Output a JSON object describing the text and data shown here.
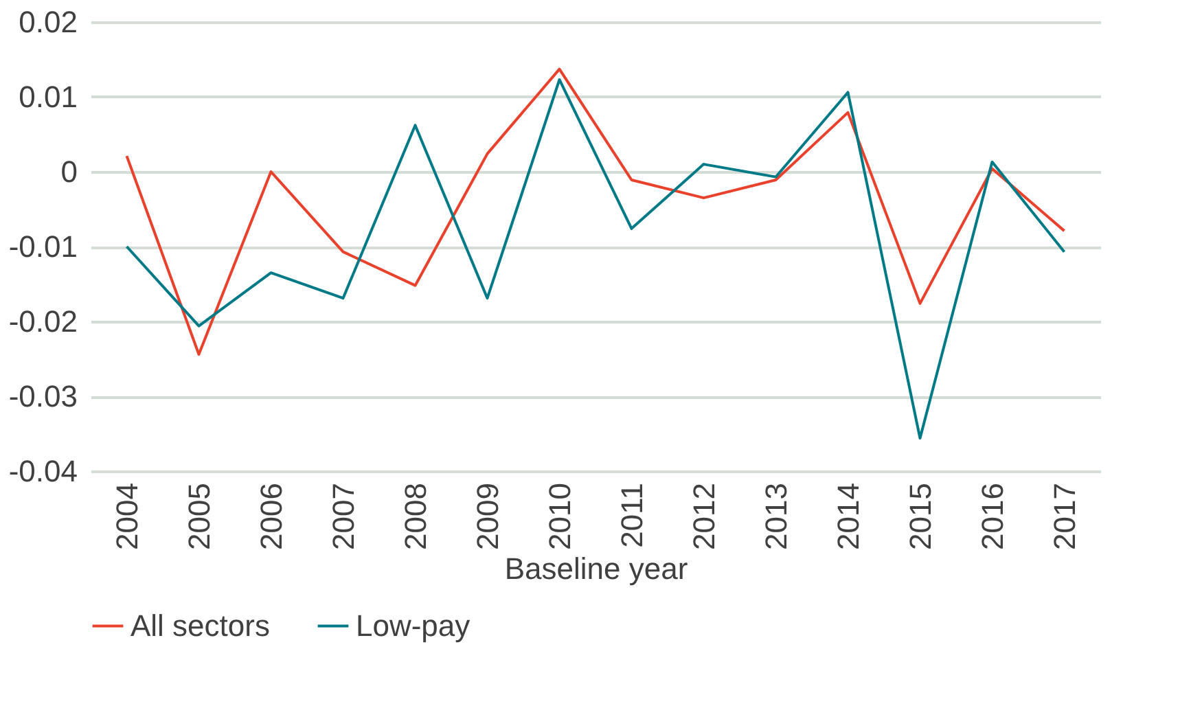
{
  "chart_data": {
    "type": "line",
    "xlabel": "Baseline year",
    "categories": [
      "2004",
      "2005",
      "2006",
      "2007",
      "2008",
      "2009",
      "2010",
      "2011",
      "2012",
      "2013",
      "2014",
      "2015",
      "2016",
      "2017"
    ],
    "series": [
      {
        "name": "All sectors",
        "color": "#e8412c",
        "values": [
          0.0021,
          -0.0244,
          0.0,
          -0.0107,
          -0.0152,
          0.0024,
          0.0137,
          -0.0011,
          -0.0035,
          -0.0011,
          0.0079,
          -0.0176,
          0.0004,
          -0.0079
        ]
      },
      {
        "name": "Low-pay",
        "color": "#007a87",
        "values": [
          -0.01,
          -0.0206,
          -0.0135,
          -0.0169,
          0.0062,
          -0.0169,
          0.0123,
          -0.0076,
          0.001,
          -0.0007,
          0.0106,
          -0.0356,
          0.0013,
          -0.0107
        ]
      }
    ],
    "ylim": [
      -0.04,
      0.02
    ],
    "yticks": [
      -0.04,
      -0.03,
      -0.02,
      -0.01,
      0,
      0.01,
      0.02
    ],
    "grid": "y",
    "legend": "bottom",
    "marker": "none",
    "line_style": "solid"
  }
}
